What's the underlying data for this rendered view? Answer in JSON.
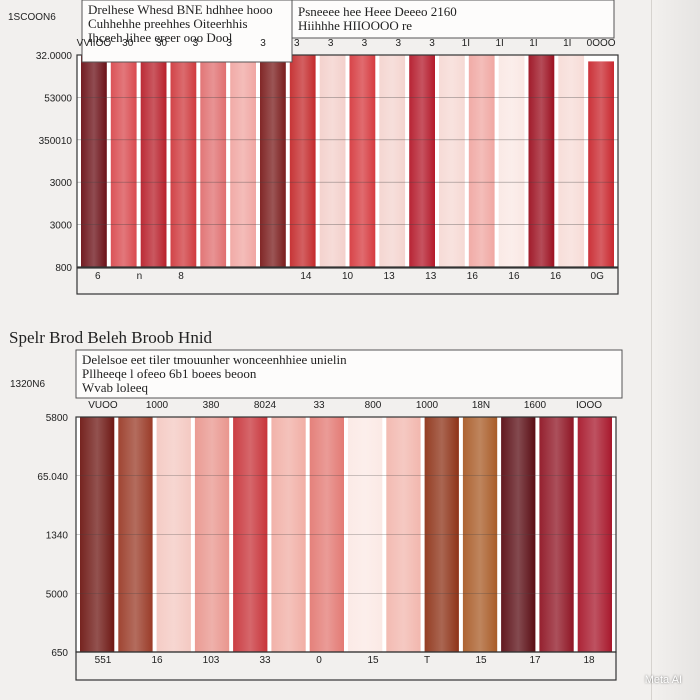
{
  "section_title": "Spelr Brod Beleh Broob Hnid",
  "watermark": "Meta AI",
  "chart_data": [
    {
      "type": "bar",
      "side_label": "1SCOON6",
      "header_lines": [
        "Drelhese Whesd BNE hdhhee hooo",
        "Cuhhehhe preehhes Oiteerhhis",
        "Ihceeh lihee ereer ooo Dool"
      ],
      "header_lines_right": [
        "Psneeee hee Heee Deeeo 2160",
        "Hiihhhe HIIOOOO re"
      ],
      "top_ticks": [
        "VVIIOO",
        "30",
        "30",
        "3",
        "3",
        "3",
        "3",
        "3",
        "3",
        "3",
        "3",
        "1I",
        "1I",
        "1I",
        "1I",
        "0OOO"
      ],
      "y_labels": [
        "32.0000",
        "53000",
        "350010",
        "3000",
        "3000",
        "800"
      ],
      "bottom_ticks": [
        "6",
        "n",
        "8",
        "",
        "",
        "14",
        "10",
        "13",
        "13",
        "16",
        "16",
        "16",
        "0G"
      ],
      "colors": [
        "#6b1017",
        "#d94a4f",
        "#b8202b",
        "#cf3a3e",
        "#e06f70",
        "#f0a6a2",
        "#7a1c1c",
        "#c42a2c",
        "#f3d0cb",
        "#d63a3f",
        "#f4d4cf",
        "#b4192a",
        "#f6d9d4",
        "#f0a7a2",
        "#fae8e4",
        "#9c1020",
        "#f7dcd7",
        "#c9282f"
      ],
      "series": [
        {
          "values": [
            100,
            100,
            100,
            100,
            100,
            100,
            100,
            100,
            100,
            100,
            100,
            100,
            100,
            100,
            100,
            100,
            100,
            97
          ]
        }
      ]
    },
    {
      "type": "bar",
      "side_label": "1320N6",
      "header_lines": [
        "Delelsoe eet tiler tmouunher wonceenhhiee unielin",
        "Pllheeqe l ofeeo 6b1 boees beoon",
        "Wvab loleeq"
      ],
      "top_ticks": [
        "VUOO",
        "1000",
        "380",
        "8024",
        "33",
        "800",
        "1000",
        "18N",
        "1600",
        "IOOO"
      ],
      "y_labels": [
        "5800",
        "65.040",
        "1340",
        "5000",
        "650"
      ],
      "bottom_ticks": [
        "551",
        "16",
        "103",
        "33",
        "0",
        "15",
        "T",
        "15",
        "17",
        "18"
      ],
      "colors": [
        "#6e1814",
        "#9a3b28",
        "#f4c9c2",
        "#e9968e",
        "#c8343a",
        "#f1aea5",
        "#e37a74",
        "#fbe9e5",
        "#f2b7ae",
        "#8e3318",
        "#a95c28",
        "#5a0d14",
        "#8f1524",
        "#a8182c"
      ],
      "series": [
        {
          "values": [
            100,
            100,
            100,
            100,
            100,
            100,
            100,
            100,
            100,
            100,
            100,
            100,
            100,
            100
          ]
        }
      ]
    }
  ]
}
